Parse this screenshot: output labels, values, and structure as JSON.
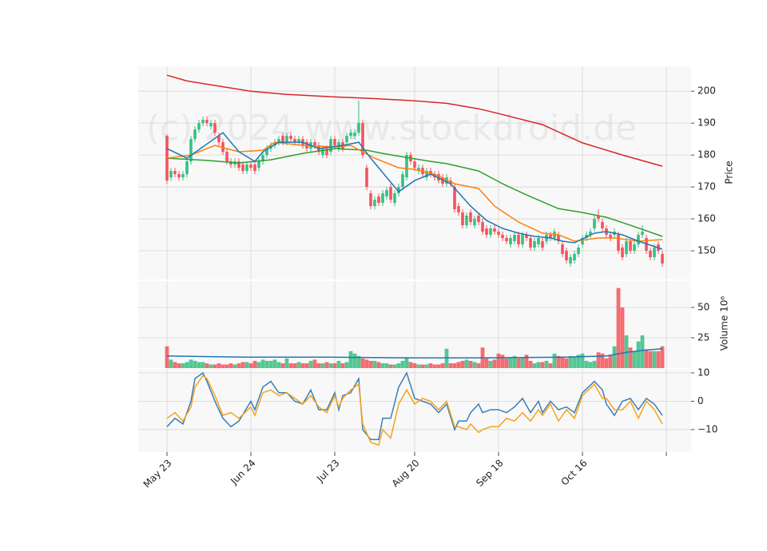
{
  "chart_data": [
    {
      "type": "candlestick",
      "watermark": "(c) 2024 www.stockdroid.de",
      "ylabel": "Price",
      "ylim": [
        141,
        207.8
      ],
      "yticks": [
        150,
        160,
        170,
        180,
        190,
        200
      ],
      "up_color": "#35c084",
      "down_color": "#f5535b",
      "open": [
        186,
        173,
        175,
        174,
        173,
        174,
        178,
        185,
        188,
        190,
        191,
        189,
        190,
        186,
        184,
        181,
        178,
        177,
        178,
        177,
        175,
        177,
        177,
        176,
        178,
        180,
        182,
        183,
        184,
        186,
        184,
        186,
        185,
        184,
        185,
        184,
        182,
        184,
        183,
        180,
        182,
        181,
        185,
        182,
        184,
        184,
        186,
        186,
        187,
        190,
        176,
        168,
        164,
        167,
        165,
        167,
        170,
        165,
        168,
        170,
        173,
        180,
        178,
        175,
        176,
        173,
        175,
        174,
        174,
        173,
        171,
        172,
        170,
        164,
        162,
        158,
        162,
        158,
        161,
        159,
        157,
        155,
        157,
        156,
        155,
        154,
        152,
        153,
        155,
        152,
        155,
        154,
        151,
        152,
        153,
        153,
        155,
        154,
        155,
        152,
        150,
        146,
        147,
        149,
        152,
        154,
        155,
        157,
        161,
        159,
        157,
        155,
        155,
        155,
        151,
        149,
        153,
        150,
        152,
        155,
        154,
        150,
        148,
        152,
        149
      ],
      "high": [
        186.5,
        176,
        176,
        175,
        175,
        179,
        186,
        189,
        191,
        192,
        192,
        191,
        191,
        187,
        185,
        182,
        179,
        179,
        179,
        178,
        178,
        178,
        178,
        179,
        181,
        183,
        184,
        185,
        186,
        187,
        187,
        187,
        186,
        186,
        186,
        185,
        185,
        185,
        184,
        183,
        183,
        186,
        186,
        185,
        185,
        187,
        188,
        188,
        197,
        191,
        177,
        169,
        167,
        168,
        169,
        170,
        171,
        169,
        171,
        175,
        181,
        181,
        179,
        177,
        177,
        176,
        176,
        175,
        175,
        174,
        174,
        173,
        171,
        165,
        163,
        162,
        163,
        161,
        162,
        160,
        158,
        158,
        158,
        157,
        156,
        155,
        155,
        156,
        156,
        156,
        156,
        155,
        154,
        155,
        154,
        156,
        156,
        157,
        156,
        153,
        151,
        149,
        150,
        152,
        155,
        156,
        157,
        161,
        163,
        160,
        158,
        156,
        157,
        156,
        152,
        154,
        154,
        153,
        156,
        158,
        155,
        151,
        152,
        153,
        150
      ],
      "low": [
        171,
        172,
        173,
        172,
        172,
        173,
        177,
        184,
        187,
        189,
        189,
        188,
        186,
        183,
        180,
        177,
        176,
        176,
        175,
        174,
        174,
        175,
        174,
        175,
        177,
        179,
        181,
        182,
        183,
        183,
        183,
        184,
        183,
        183,
        182,
        181,
        181,
        182,
        180,
        179,
        179,
        180,
        182,
        181,
        181,
        183,
        185,
        185,
        186,
        179,
        169,
        163,
        163,
        164,
        164,
        166,
        165,
        164,
        167,
        169,
        172,
        177,
        175,
        174,
        173,
        172,
        173,
        172,
        171,
        170,
        170,
        170,
        162,
        161,
        157,
        157,
        158,
        157,
        158,
        155,
        154,
        154,
        155,
        154,
        153,
        152,
        151,
        152,
        151,
        151,
        153,
        150,
        150,
        151,
        150,
        152,
        153,
        153,
        152,
        148,
        146,
        145,
        146,
        148,
        151,
        153,
        154,
        156,
        159,
        156,
        154,
        153,
        154,
        149,
        147,
        148,
        149,
        149,
        151,
        154,
        149,
        147,
        147,
        149,
        145
      ],
      "close": [
        172,
        175,
        174,
        173,
        174,
        178,
        185,
        188,
        190,
        191,
        190,
        190,
        187,
        184,
        181,
        178,
        177,
        178,
        176,
        175,
        177,
        176,
        175,
        178,
        180,
        182,
        183,
        184,
        185,
        184,
        186,
        185,
        184,
        185,
        183,
        182,
        184,
        183,
        181,
        182,
        180,
        185,
        183,
        184,
        182,
        186,
        187,
        187,
        190,
        180,
        170,
        164,
        166,
        165,
        168,
        169,
        166,
        168,
        170,
        174,
        180,
        178,
        176,
        176,
        174,
        175,
        174,
        173,
        172,
        171,
        173,
        171,
        163,
        162,
        158,
        161,
        159,
        160,
        159,
        156,
        155,
        157,
        156,
        155,
        154,
        153,
        154,
        155,
        152,
        155,
        154,
        151,
        153,
        154,
        151,
        155,
        154,
        156,
        153,
        149,
        147,
        148,
        149,
        151,
        154,
        155,
        156,
        160,
        160,
        157,
        155,
        154,
        156,
        150,
        148,
        153,
        150,
        152,
        155,
        156,
        150,
        148,
        151,
        150,
        146
      ],
      "series": [
        {
          "color": "#d62728",
          "x": [
            0,
            5,
            21,
            30,
            42,
            50,
            62,
            70,
            78,
            83,
            94,
            104,
            114,
            124
          ],
          "values": [
            205,
            203.2,
            200,
            199,
            198.2,
            197.8,
            197,
            196.2,
            194.5,
            193,
            189.5,
            183.8,
            180,
            176.5
          ]
        },
        {
          "color": "#2ca02c",
          "x": [
            0,
            10,
            18,
            26,
            34,
            42,
            50,
            54,
            60,
            66,
            70,
            78,
            84,
            90,
            98,
            104,
            110,
            116,
            124
          ],
          "values": [
            179,
            178.3,
            177.5,
            178.5,
            180.5,
            182,
            181.5,
            180.5,
            179.2,
            178,
            177.3,
            175,
            171,
            167.5,
            163.2,
            162,
            160.5,
            158,
            154.5
          ]
        },
        {
          "color": "#ff7f0e",
          "x": [
            0,
            6,
            12,
            18,
            24,
            27,
            34,
            42,
            46,
            52,
            58,
            62,
            67,
            72,
            78,
            82,
            88,
            94,
            98,
            102,
            108,
            112,
            118,
            124
          ],
          "values": [
            179,
            180,
            183,
            181,
            181.5,
            184,
            183,
            182.5,
            183,
            179,
            176,
            175.5,
            174,
            171,
            169.5,
            164,
            159,
            155.5,
            155,
            153,
            154,
            154,
            153,
            153.5
          ]
        },
        {
          "color": "#1f77b4",
          "x": [
            0,
            5,
            14,
            18,
            22,
            24,
            28,
            34,
            38,
            44,
            48,
            51,
            58,
            62,
            66,
            71,
            76,
            80,
            84,
            88,
            92,
            96,
            99,
            102,
            107,
            110,
            114,
            118,
            124
          ],
          "values": [
            182,
            179,
            187,
            181,
            178,
            181,
            184,
            184,
            182,
            183,
            184,
            179,
            168.5,
            172,
            174,
            171,
            164,
            159.5,
            157,
            155.5,
            154.5,
            154,
            153,
            152.5,
            155.5,
            156,
            155,
            153,
            150.5
          ]
        }
      ]
    },
    {
      "type": "bar",
      "ylabel": "Volume  10⁶",
      "ylim": [
        0,
        71.7
      ],
      "yticks": [
        25,
        50
      ],
      "values": [
        18,
        7,
        5,
        4,
        4,
        5,
        7,
        6,
        5,
        5,
        4,
        3,
        3,
        4,
        3,
        3,
        4,
        3,
        4,
        5,
        5,
        4,
        6,
        5,
        7,
        6,
        6,
        7,
        5,
        4,
        8,
        4,
        4,
        5,
        4,
        4,
        6,
        7,
        4,
        4,
        5,
        4,
        4,
        6,
        4,
        5,
        14,
        12,
        10,
        8,
        7,
        6,
        6,
        5,
        4,
        4,
        3,
        3,
        4,
        6,
        9,
        5,
        4,
        3,
        3,
        3,
        4,
        3,
        3,
        4,
        16,
        4,
        4,
        5,
        6,
        7,
        6,
        5,
        4,
        17,
        8,
        6,
        7,
        12,
        11,
        8,
        9,
        10,
        8,
        9,
        11,
        6,
        4,
        5,
        5,
        6,
        4,
        12,
        10,
        9,
        8,
        10,
        9,
        11,
        12,
        6,
        5,
        6,
        13,
        12,
        8,
        11,
        18,
        66,
        50,
        27,
        17,
        14,
        22,
        27,
        15,
        14,
        14,
        14,
        18
      ],
      "series": [
        {
          "color": "#1f77b4",
          "x": [
            0,
            20,
            40,
            60,
            80,
            100,
            110,
            115,
            120,
            124
          ],
          "values": [
            10,
            9,
            9,
            8.5,
            8.5,
            9,
            10,
            13,
            15,
            16
          ]
        }
      ]
    },
    {
      "type": "line",
      "ylim": [
        -17.9,
        11.4
      ],
      "yticks": [
        10,
        0,
        {
          "value": -10,
          "label": "−10"
        }
      ],
      "xlim": [
        -7.2,
        131.2
      ],
      "xticks": [
        {
          "value": 0,
          "label": "May 23"
        },
        {
          "value": 21,
          "label": "Jun 24"
        },
        {
          "value": 42,
          "label": "Jul 23"
        },
        {
          "value": 62,
          "label": "Aug 20"
        },
        {
          "value": 83,
          "label": "Sep 18"
        },
        {
          "value": 104,
          "label": "Oct 16"
        },
        {
          "value": 125,
          "label": null
        }
      ],
      "series": [
        {
          "color": "#3a7fb8",
          "x": [
            0,
            2,
            4,
            6,
            7,
            9,
            10,
            12,
            14,
            16,
            18,
            21,
            22,
            24,
            26,
            28,
            30,
            32,
            34,
            36,
            38,
            40,
            42,
            43,
            44,
            46,
            48,
            49,
            51,
            53,
            54,
            56,
            58,
            60,
            62,
            64,
            66,
            68,
            70,
            72,
            73,
            75,
            76,
            78,
            79,
            81,
            83,
            85,
            87,
            89,
            91,
            93,
            94,
            96,
            98,
            100,
            102,
            104,
            107,
            109,
            110,
            112,
            114,
            116,
            118,
            120,
            122,
            124
          ],
          "values": [
            -9,
            -6,
            -8,
            0,
            8,
            10,
            7,
            0,
            -6,
            -9,
            -7,
            0,
            -3,
            5,
            7,
            3,
            3,
            0,
            -1,
            4,
            -3,
            -3,
            3,
            -3,
            2,
            3,
            8,
            -10,
            -13.5,
            -13.5,
            -6,
            -6,
            5,
            10,
            1,
            0,
            -1,
            -4,
            -1,
            -10,
            -7,
            -7,
            -4,
            -1,
            -4,
            -3,
            -3,
            -4,
            -2,
            1,
            -4,
            0,
            -4,
            0,
            -3,
            -2,
            -4,
            3,
            7,
            4,
            -1,
            -5,
            0,
            1,
            -3,
            1,
            -1,
            -5
          ]
        },
        {
          "color": "#f5a31a",
          "x": [
            0,
            2,
            4,
            6,
            7,
            9,
            10,
            12,
            14,
            16,
            18,
            21,
            22,
            24,
            26,
            28,
            30,
            32,
            34,
            36,
            38,
            40,
            42,
            43,
            44,
            46,
            48,
            49,
            51,
            53,
            54,
            56,
            58,
            60,
            62,
            64,
            66,
            68,
            70,
            72,
            73,
            75,
            76,
            78,
            79,
            81,
            83,
            85,
            87,
            89,
            91,
            93,
            94,
            96,
            98,
            100,
            102,
            104,
            107,
            109,
            110,
            112,
            114,
            116,
            118,
            120,
            122,
            124
          ],
          "values": [
            -6,
            -4,
            -7,
            -2,
            5,
            9,
            8,
            2,
            -5,
            -4,
            -6,
            -2,
            -5,
            3,
            4,
            2,
            3,
            1,
            -1,
            2,
            -2,
            -4,
            2,
            -2,
            1,
            4,
            6,
            -8,
            -14.5,
            -15.5,
            -10,
            -13,
            -1,
            4,
            -1,
            1,
            0,
            -3,
            0,
            -9,
            -9,
            -10,
            -8,
            -11,
            -10,
            -9,
            -9,
            -6,
            -7,
            -4,
            -7,
            -3,
            -5,
            -1,
            -7,
            -3,
            -6,
            2,
            6,
            1,
            1,
            -3,
            -3,
            0,
            -6,
            0,
            -3,
            -8
          ]
        }
      ]
    }
  ]
}
